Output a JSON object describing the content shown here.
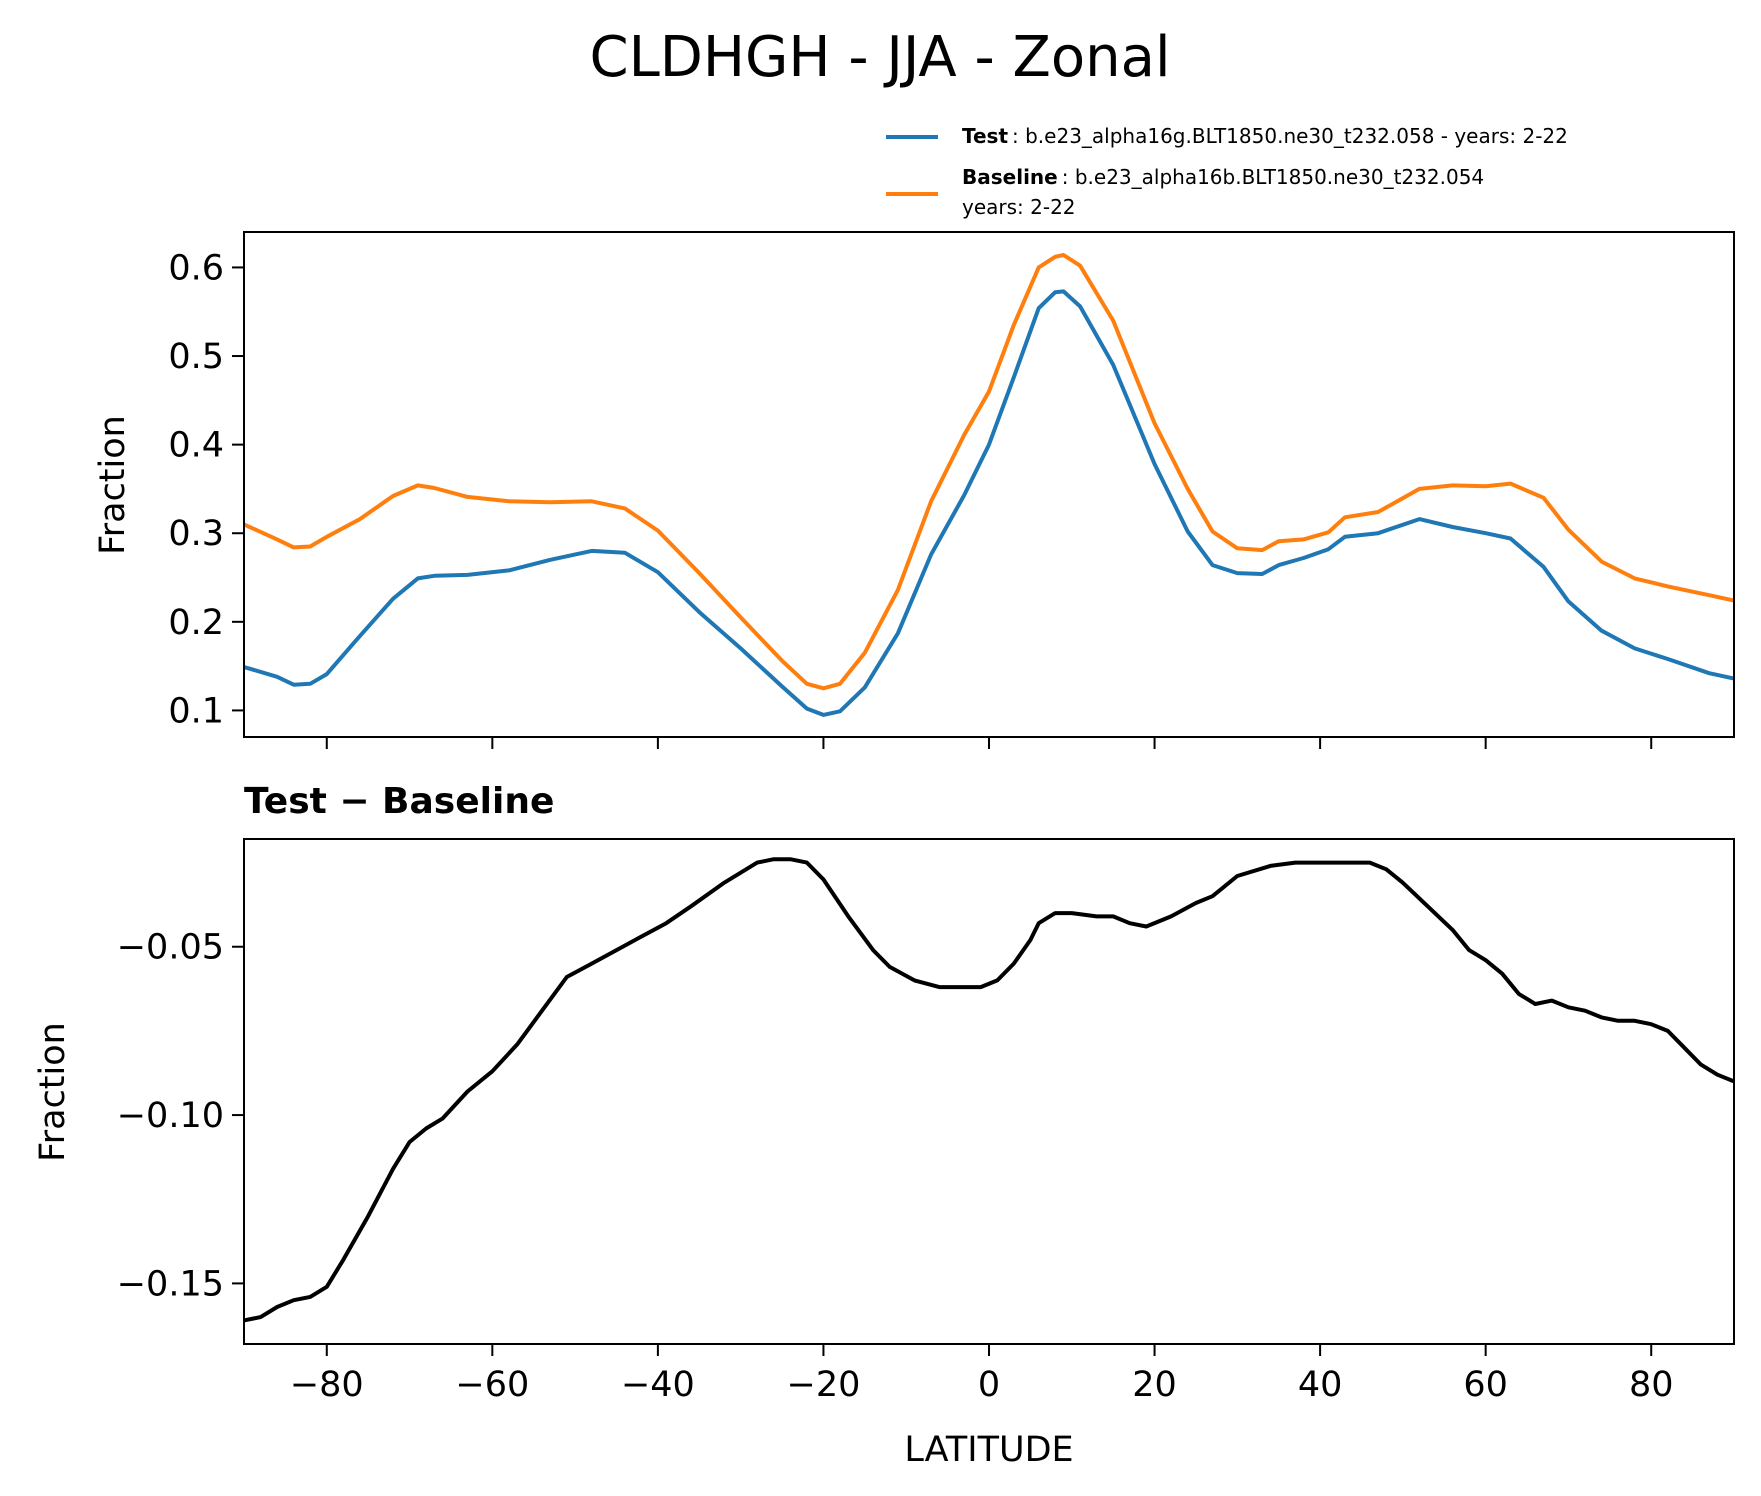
{
  "chart_data": [
    {
      "type": "line",
      "title": "CLDHGH - JJA - Zonal",
      "xlabel": "",
      "ylabel": "Fraction",
      "xlim": [
        -90,
        90
      ],
      "ylim": [
        0.07,
        0.64
      ],
      "yticks": [
        0.1,
        0.2,
        0.3,
        0.4,
        0.5,
        0.6
      ],
      "ytick_labels": [
        "0.1",
        "0.2",
        "0.3",
        "0.4",
        "0.5",
        "0.6"
      ],
      "legend": {
        "placement": "above-right",
        "entries": [
          {
            "bold": "Test",
            "text": ": b.e23_alpha16g.BLT1850.ne30_t232.058 - years: 2-22",
            "text2": ""
          },
          {
            "bold": "Baseline",
            "text": ": b.e23_alpha16b.BLT1850.ne30_t232.054",
            "text2": "years: 2-22"
          }
        ]
      },
      "x": [
        -90,
        -86,
        -84,
        -82,
        -80,
        -76,
        -72,
        -69,
        -67,
        -63,
        -58,
        -53,
        -48,
        -44,
        -40,
        -35,
        -30,
        -25,
        -22,
        -20,
        -18,
        -15,
        -11,
        -7,
        -3,
        0,
        3,
        6,
        8,
        9,
        11,
        15,
        20,
        24,
        27,
        30,
        33,
        35,
        38,
        41,
        43,
        47,
        52,
        56,
        60,
        63,
        67,
        70,
        74,
        78,
        82,
        87,
        90
      ],
      "series": [
        {
          "name": "Test",
          "color": "#1f77b4",
          "values": [
            0.149,
            0.138,
            0.129,
            0.13,
            0.141,
            0.184,
            0.226,
            0.249,
            0.252,
            0.253,
            0.258,
            0.27,
            0.28,
            0.278,
            0.256,
            0.211,
            0.17,
            0.127,
            0.102,
            0.095,
            0.099,
            0.126,
            0.187,
            0.276,
            0.343,
            0.4,
            0.476,
            0.554,
            0.572,
            0.573,
            0.556,
            0.49,
            0.378,
            0.302,
            0.264,
            0.255,
            0.254,
            0.264,
            0.272,
            0.282,
            0.296,
            0.3,
            0.316,
            0.307,
            0.3,
            0.294,
            0.262,
            0.223,
            0.19,
            0.17,
            0.158,
            0.142,
            0.136
          ]
        },
        {
          "name": "Baseline",
          "color": "#ff7f0e",
          "values": [
            0.31,
            0.293,
            0.284,
            0.285,
            0.296,
            0.316,
            0.342,
            0.354,
            0.351,
            0.341,
            0.336,
            0.335,
            0.336,
            0.328,
            0.303,
            0.255,
            0.205,
            0.156,
            0.13,
            0.125,
            0.13,
            0.165,
            0.236,
            0.336,
            0.411,
            0.46,
            0.535,
            0.6,
            0.612,
            0.614,
            0.602,
            0.54,
            0.424,
            0.35,
            0.302,
            0.283,
            0.281,
            0.291,
            0.293,
            0.301,
            0.318,
            0.324,
            0.35,
            0.354,
            0.353,
            0.356,
            0.34,
            0.304,
            0.268,
            0.249,
            0.24,
            0.23,
            0.224
          ]
        }
      ]
    },
    {
      "type": "line",
      "title": "Test − Baseline",
      "xlabel": "LATITUDE",
      "ylabel": "Fraction",
      "xlim": [
        -90,
        90
      ],
      "ylim": [
        -0.168,
        -0.018
      ],
      "xticks": [
        -80,
        -60,
        -40,
        -20,
        0,
        20,
        40,
        60,
        80
      ],
      "xtick_labels": [
        "−80",
        "−60",
        "−40",
        "−20",
        "0",
        "20",
        "40",
        "60",
        "80"
      ],
      "yticks": [
        -0.15,
        -0.1,
        -0.05
      ],
      "ytick_labels": [
        "−0.15",
        "−0.10",
        "−0.05"
      ],
      "x": [
        -90,
        -88,
        -86,
        -84,
        -82,
        -80,
        -78,
        -75,
        -72,
        -70,
        -68,
        -66,
        -63,
        -60,
        -57,
        -54,
        -51,
        -48,
        -45,
        -42,
        -39,
        -36,
        -32,
        -28,
        -26,
        -24,
        -22,
        -20,
        -17,
        -14,
        -12,
        -9,
        -6,
        -3,
        -1,
        1,
        3,
        5,
        6,
        8,
        10,
        13,
        15,
        17,
        19,
        22,
        25,
        27,
        30,
        34,
        37,
        40,
        43,
        46,
        48,
        50,
        53,
        56,
        58,
        60,
        62,
        64,
        66,
        68,
        70,
        72,
        74,
        76,
        78,
        80,
        82,
        84,
        86,
        88,
        90
      ],
      "series": [
        {
          "name": "Test − Baseline",
          "color": "#000000",
          "values": [
            -0.161,
            -0.16,
            -0.157,
            -0.155,
            -0.154,
            -0.151,
            -0.143,
            -0.13,
            -0.116,
            -0.108,
            -0.104,
            -0.101,
            -0.093,
            -0.087,
            -0.079,
            -0.069,
            -0.059,
            -0.055,
            -0.051,
            -0.047,
            -0.043,
            -0.038,
            -0.031,
            -0.025,
            -0.024,
            -0.024,
            -0.025,
            -0.03,
            -0.041,
            -0.051,
            -0.056,
            -0.06,
            -0.062,
            -0.062,
            -0.062,
            -0.06,
            -0.055,
            -0.048,
            -0.043,
            -0.04,
            -0.04,
            -0.041,
            -0.041,
            -0.043,
            -0.044,
            -0.041,
            -0.037,
            -0.035,
            -0.029,
            -0.026,
            -0.025,
            -0.025,
            -0.025,
            -0.025,
            -0.027,
            -0.031,
            -0.038,
            -0.045,
            -0.051,
            -0.054,
            -0.058,
            -0.064,
            -0.067,
            -0.066,
            -0.068,
            -0.069,
            -0.071,
            -0.072,
            -0.072,
            -0.073,
            -0.075,
            -0.08,
            -0.085,
            -0.088,
            -0.09
          ]
        }
      ]
    }
  ]
}
